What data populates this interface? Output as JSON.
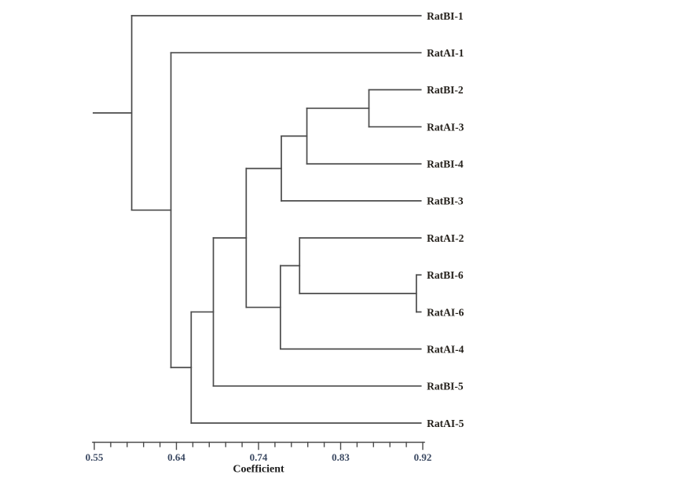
{
  "figure": {
    "background_color": "#ffffff",
    "branch_color": "#4b4b4b",
    "leaf_label_color": "#24201b",
    "axis_tick_label_color": "#3c4a63",
    "axis_title_color": "#1c1c1c"
  },
  "chart_data": {
    "type": "dendrogram",
    "orientation": "horizontal, leaves on right",
    "title": "",
    "axis": {
      "title": "Coefficient",
      "position": "bottom",
      "tick_values": [
        0.55,
        0.64,
        0.74,
        0.83,
        0.92
      ],
      "tick_labels": [
        "0.55",
        "0.64",
        "0.74",
        "0.83",
        "0.92"
      ],
      "minor_intervals_per_major": 5,
      "range": [
        0.55,
        0.92
      ]
    },
    "leaves_top_to_bottom": [
      "RatBI-1",
      "RatAI-1",
      "RatBI-2",
      "RatAI-3",
      "RatBI-4",
      "RatBI-3",
      "RatAI-2",
      "RatBI-6",
      "RatAI-6",
      "RatAI-4",
      "RatBI-5",
      "RatAI-5"
    ],
    "leaf_tip_coefficient": 0.918,
    "root_tail_coefficient": 0.549,
    "tree": {
      "coefficient": 0.591,
      "children": [
        {
          "name": "RatBI-1"
        },
        {
          "coefficient": 0.634,
          "children": [
            {
              "name": "RatAI-1"
            },
            {
              "coefficient": 0.658,
              "children": [
                {
                  "coefficient": 0.685,
                  "children": [
                    {
                      "coefficient": 0.725,
                      "children": [
                        {
                          "coefficient": 0.765,
                          "children": [
                            {
                              "coefficient": 0.793,
                              "children": [
                                {
                                  "coefficient": 0.861,
                                  "children": [
                                    {
                                      "name": "RatBI-2"
                                    },
                                    {
                                      "name": "RatAI-3"
                                    }
                                  ]
                                },
                                {
                                  "name": "RatBI-4"
                                }
                              ]
                            },
                            {
                              "name": "RatBI-3"
                            }
                          ]
                        },
                        {
                          "coefficient": 0.764,
                          "children": [
                            {
                              "coefficient": 0.785,
                              "children": [
                                {
                                  "name": "RatAI-2"
                                },
                                {
                                  "coefficient": 0.913,
                                  "children": [
                                    {
                                      "name": "RatBI-6"
                                    },
                                    {
                                      "name": "RatAI-6"
                                    }
                                  ]
                                }
                              ]
                            },
                            {
                              "name": "RatAI-4"
                            }
                          ]
                        }
                      ]
                    },
                    {
                      "name": "RatBI-5"
                    }
                  ]
                },
                {
                  "name": "RatAI-5"
                }
              ]
            }
          ]
        }
      ]
    }
  }
}
